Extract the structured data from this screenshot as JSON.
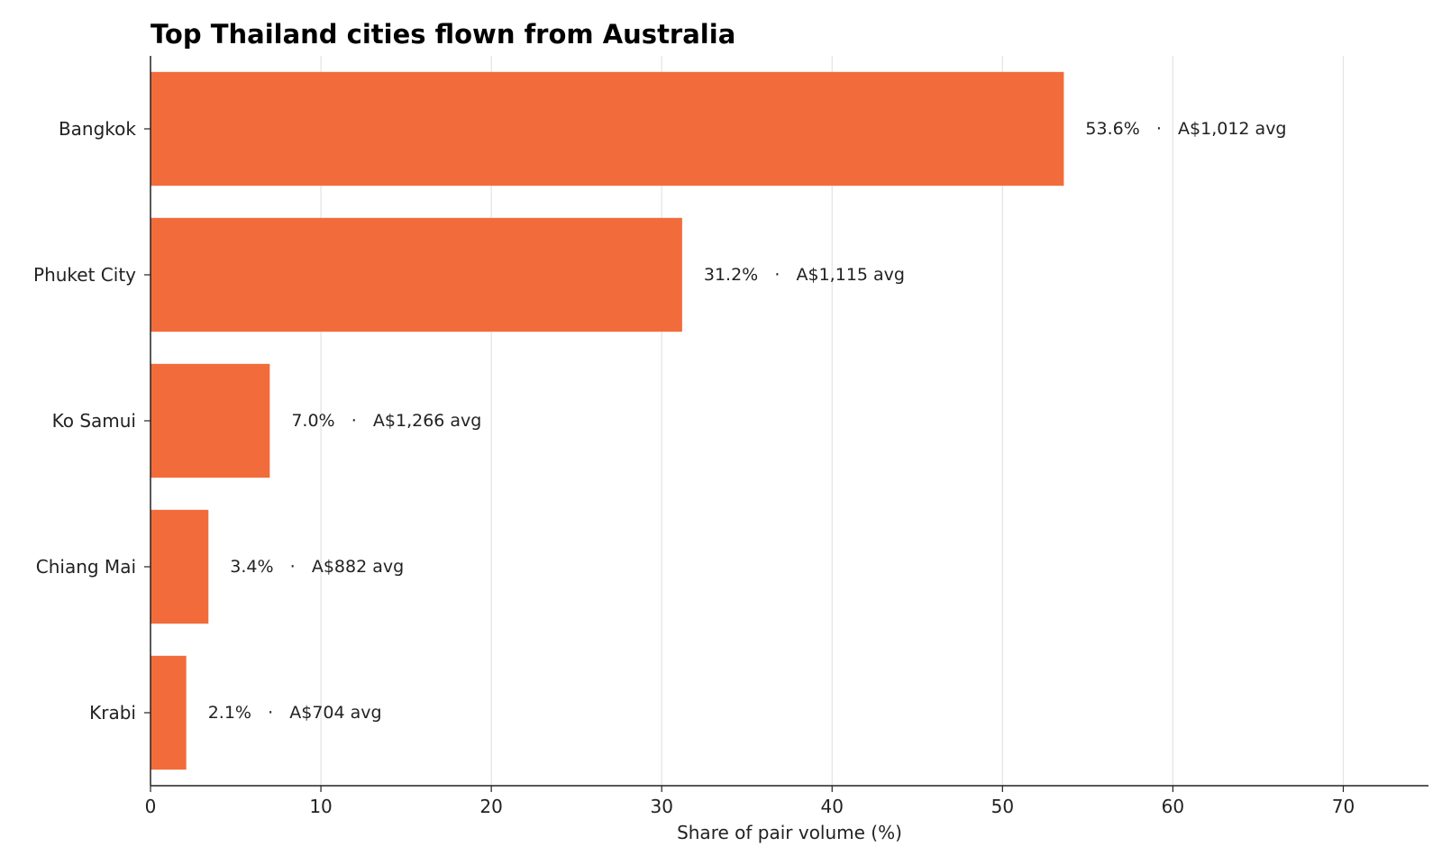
{
  "chart_data": {
    "type": "bar",
    "orientation": "horizontal",
    "title": "Top Thailand cities flown from Australia",
    "xlabel": "Share of pair volume (%)",
    "ylabel": "",
    "categories": [
      "Bangkok",
      "Phuket City",
      "Ko Samui",
      "Chiang Mai",
      "Krabi"
    ],
    "values": [
      53.6,
      31.2,
      7.0,
      3.4,
      2.1
    ],
    "data_labels": [
      "53.6%   ·   A$1,012 avg",
      "31.2%   ·   A$1,115 avg",
      "7.0%   ·   A$1,266 avg",
      "3.4%   ·   A$882 avg",
      "2.1%   ·   A$704 avg"
    ],
    "xlim": [
      0,
      75
    ],
    "xticks": [
      0,
      10,
      20,
      30,
      40,
      50,
      60,
      70
    ],
    "grid": "vertical",
    "legend": "none",
    "colors": {
      "bar": "#f26c3b",
      "grid": "#e3e3e3",
      "axis": "#222222"
    }
  }
}
